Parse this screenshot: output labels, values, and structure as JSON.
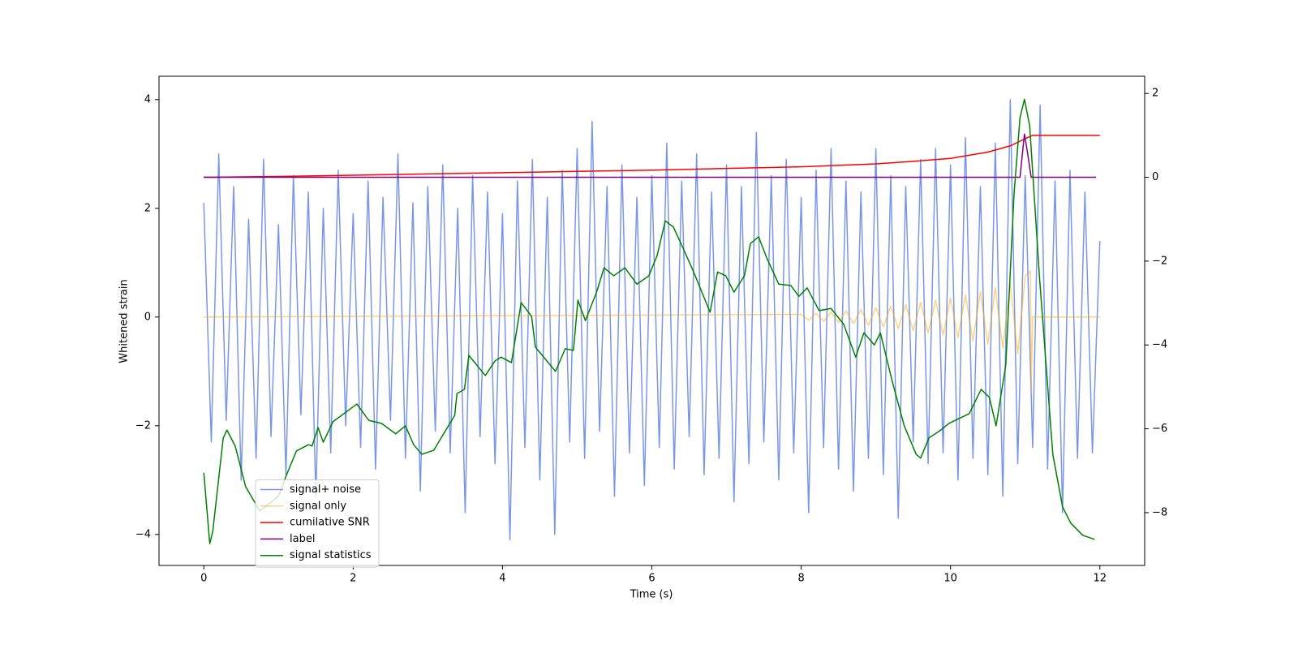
{
  "chart_data": {
    "type": "line",
    "xlabel": "Time (s)",
    "ylabel": "Whitened strain",
    "xlim": [
      -0.6,
      12.6
    ],
    "ylim": [
      -4.57,
      4.43
    ],
    "y2lim": [
      -9.26,
      2.41
    ],
    "xticks": [
      0,
      2,
      4,
      6,
      8,
      10,
      12
    ],
    "yticks": [
      {
        "value": -4,
        "label": "−4"
      },
      {
        "value": -2,
        "label": "−2"
      },
      0,
      2,
      4
    ],
    "y2ticks": [
      {
        "value": -8,
        "label": "−8"
      },
      {
        "value": -6,
        "label": "−6"
      },
      {
        "value": -4,
        "label": "−4"
      },
      {
        "value": -2,
        "label": "−2"
      },
      0,
      2
    ],
    "legend": "lower left",
    "series": [
      {
        "name": "signal+ noise",
        "color": "royalblue",
        "alpha": 0.7,
        "axis": "y",
        "x": [
          0,
          0.1,
          0.2,
          0.3,
          0.4,
          0.5,
          0.6,
          0.7,
          0.8,
          0.9,
          1,
          1.1,
          1.2,
          1.3,
          1.4,
          1.5,
          1.6,
          1.7,
          1.8,
          1.9,
          2,
          2.1,
          2.2,
          2.3,
          2.4,
          2.5,
          2.6,
          2.7,
          2.8,
          2.9,
          3,
          3.1,
          3.2,
          3.3,
          3.4,
          3.5,
          3.6,
          3.7,
          3.8,
          3.9,
          4,
          4.1,
          4.2,
          4.3,
          4.4,
          4.5,
          4.6,
          4.7,
          4.8,
          4.9,
          5,
          5.1,
          5.2,
          5.3,
          5.4,
          5.5,
          5.6,
          5.7,
          5.8,
          5.9,
          6,
          6.1,
          6.2,
          6.3,
          6.4,
          6.5,
          6.6,
          6.7,
          6.8,
          6.9,
          7,
          7.1,
          7.2,
          7.3,
          7.4,
          7.5,
          7.6,
          7.7,
          7.8,
          7.9,
          8,
          8.1,
          8.2,
          8.3,
          8.4,
          8.5,
          8.6,
          8.7,
          8.8,
          8.9,
          9,
          9.1,
          9.2,
          9.3,
          9.4,
          9.5,
          9.6,
          9.7,
          9.8,
          9.9,
          10,
          10.1,
          10.2,
          10.3,
          10.4,
          10.5,
          10.6,
          10.7,
          10.8,
          10.9,
          11,
          11.1,
          11.2,
          11.3,
          11.4,
          11.5,
          11.6,
          11.7,
          11.8,
          11.9,
          12
        ],
        "values": [
          2.1,
          -2.3,
          3.0,
          -1.9,
          2.4,
          -3.0,
          1.8,
          -2.6,
          2.9,
          -2.2,
          1.7,
          -2.9,
          2.6,
          -1.8,
          2.3,
          -3.3,
          2.0,
          -2.5,
          2.7,
          -2.0,
          1.9,
          -2.4,
          2.5,
          -2.8,
          2.2,
          -1.9,
          3.0,
          -2.6,
          2.1,
          -3.2,
          2.4,
          -2.1,
          2.8,
          -2.5,
          2.0,
          -3.6,
          2.6,
          -2.2,
          2.3,
          -2.7,
          1.9,
          -4.1,
          2.5,
          -2.4,
          2.9,
          -3.0,
          2.2,
          -4.0,
          2.7,
          -2.3,
          3.1,
          -2.6,
          3.6,
          -2.1,
          2.4,
          -3.3,
          2.8,
          -2.5,
          2.2,
          -3.1,
          2.6,
          -2.4,
          3.2,
          -2.8,
          2.5,
          -2.2,
          3.0,
          -2.9,
          2.3,
          -2.6,
          2.8,
          -3.4,
          2.4,
          -2.7,
          3.4,
          -2.3,
          2.6,
          -3.0,
          2.9,
          -2.5,
          2.2,
          -3.6,
          2.7,
          -2.4,
          3.1,
          -2.8,
          2.5,
          -3.2,
          2.3,
          -2.6,
          3.1,
          -2.9,
          2.6,
          -3.7,
          2.4,
          -2.3,
          2.9,
          -2.7,
          3.1,
          -2.5,
          2.8,
          -3.0,
          3.3,
          -2.6,
          2.4,
          -2.9,
          3.2,
          -3.3,
          4.0,
          -2.7,
          2.6,
          -2.4,
          3.9,
          -2.8,
          2.5,
          -3.6,
          2.7,
          -2.6,
          2.3,
          -2.5,
          1.4
        ]
      },
      {
        "name": "signal only",
        "color": "orange",
        "alpha": 0.5,
        "axis": "y",
        "x": [
          0,
          8.0,
          8.1,
          8.2,
          8.3,
          8.4,
          8.5,
          8.6,
          8.7,
          8.8,
          8.9,
          9.0,
          9.1,
          9.2,
          9.3,
          9.4,
          9.5,
          9.6,
          9.7,
          9.8,
          9.9,
          10.0,
          10.1,
          10.2,
          10.3,
          10.4,
          10.5,
          10.6,
          10.7,
          10.8,
          10.9,
          11.0,
          11.07,
          11.08,
          11.1,
          12
        ],
        "values": [
          0,
          0.05,
          -0.06,
          0.07,
          -0.08,
          0.09,
          -0.1,
          0.11,
          -0.12,
          0.14,
          -0.15,
          0.17,
          -0.18,
          0.2,
          -0.21,
          0.23,
          -0.25,
          0.27,
          -0.29,
          0.31,
          -0.33,
          0.35,
          -0.38,
          0.41,
          -0.44,
          0.47,
          -0.5,
          0.54,
          -0.58,
          0.62,
          -0.68,
          0.75,
          0.85,
          -1.35,
          0,
          0
        ]
      },
      {
        "name": "cumilative SNR",
        "color": "red",
        "alpha": 1,
        "axis": "y2",
        "x": [
          0,
          1,
          2,
          3,
          4,
          5,
          6,
          7,
          8,
          9,
          9.5,
          10,
          10.5,
          10.8,
          11,
          11.1,
          12
        ],
        "values": [
          0,
          0.02,
          0.05,
          0.08,
          0.11,
          0.14,
          0.17,
          0.21,
          0.25,
          0.32,
          0.38,
          0.45,
          0.6,
          0.75,
          0.92,
          1.0,
          1.0
        ]
      },
      {
        "name": "label",
        "color": "purple",
        "alpha": 1,
        "axis": "y2",
        "x": [
          0,
          10.93,
          10.99,
          11.03,
          11.08,
          11.95
        ],
        "values": [
          0,
          0,
          1.03,
          0.6,
          0,
          0
        ]
      },
      {
        "name": "signal statistics",
        "color": "green",
        "alpha": 1,
        "axis": "y2",
        "x": [
          0,
          0.08,
          0.12,
          0.26,
          0.31,
          0.42,
          0.5,
          0.56,
          0.75,
          1.0,
          1.11,
          1.24,
          1.4,
          1.45,
          1.53,
          1.6,
          1.73,
          2.05,
          2.21,
          2.38,
          2.57,
          2.7,
          2.81,
          2.92,
          3.08,
          3.36,
          3.39,
          3.49,
          3.55,
          3.77,
          3.9,
          3.98,
          4.12,
          4.25,
          4.39,
          4.44,
          4.71,
          4.84,
          4.95,
          5.01,
          5.11,
          5.26,
          5.36,
          5.49,
          5.64,
          5.8,
          5.96,
          6.07,
          6.18,
          6.29,
          6.4,
          6.56,
          6.78,
          6.88,
          6.99,
          7.1,
          7.24,
          7.32,
          7.43,
          7.54,
          7.7,
          7.86,
          7.97,
          8.08,
          8.24,
          8.4,
          8.57,
          8.73,
          8.84,
          8.98,
          9.06,
          9.22,
          9.38,
          9.54,
          9.6,
          9.71,
          9.87,
          9.98,
          10.25,
          10.41,
          10.52,
          10.61,
          10.74,
          10.85,
          10.93,
          10.99,
          11.06,
          11.19,
          11.37,
          11.5,
          11.61,
          11.77,
          11.93
        ],
        "values": [
          -7.05,
          -8.74,
          -8.45,
          -6.22,
          -6.03,
          -6.41,
          -6.96,
          -7.38,
          -7.96,
          -7.61,
          -7.09,
          -6.53,
          -6.38,
          -6.41,
          -5.97,
          -6.32,
          -5.83,
          -5.41,
          -5.8,
          -5.87,
          -6.12,
          -5.93,
          -6.38,
          -6.61,
          -6.51,
          -5.68,
          -5.16,
          -5.06,
          -4.25,
          -4.73,
          -4.38,
          -4.29,
          -4.42,
          -2.99,
          -3.32,
          -4.05,
          -4.63,
          -4.09,
          -4.13,
          -2.93,
          -3.42,
          -2.74,
          -2.16,
          -2.35,
          -2.16,
          -2.55,
          -2.35,
          -1.87,
          -1.04,
          -1.19,
          -1.62,
          -2.26,
          -3.22,
          -2.26,
          -2.35,
          -2.74,
          -2.35,
          -1.58,
          -1.42,
          -1.93,
          -2.55,
          -2.58,
          -2.84,
          -2.64,
          -3.18,
          -3.13,
          -3.51,
          -4.29,
          -3.71,
          -4.0,
          -3.71,
          -4.87,
          -5.93,
          -6.61,
          -6.7,
          -6.22,
          -6.03,
          -5.87,
          -5.64,
          -5.06,
          -5.25,
          -5.93,
          -4.48,
          -0.42,
          1.42,
          1.86,
          1.23,
          -2.35,
          -6.61,
          -7.86,
          -8.25,
          -8.54,
          -8.64
        ]
      }
    ]
  }
}
